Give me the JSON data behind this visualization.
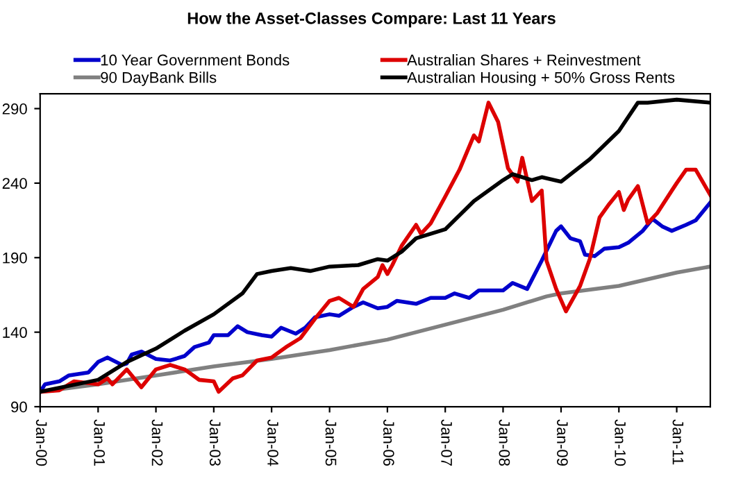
{
  "chart_data": {
    "type": "line",
    "title": "How the Asset-Classes Compare: Last 11 Years",
    "xlim": [
      "2000-01",
      "2011-08"
    ],
    "xticks": [
      {
        "value": "2000-01",
        "label": "Jan-00"
      },
      {
        "value": "2001-01",
        "label": "Jan-01"
      },
      {
        "value": "2002-01",
        "label": "Jan-02"
      },
      {
        "value": "2003-01",
        "label": "Jan-03"
      },
      {
        "value": "2004-01",
        "label": "Jan-04"
      },
      {
        "value": "2005-01",
        "label": "Jan-05"
      },
      {
        "value": "2006-01",
        "label": "Jan-06"
      },
      {
        "value": "2007-01",
        "label": "Jan-07"
      },
      {
        "value": "2008-01",
        "label": "Jan-08"
      },
      {
        "value": "2009-01",
        "label": "Jan-09"
      },
      {
        "value": "2010-01",
        "label": "Jan-10"
      },
      {
        "value": "2011-01",
        "label": "Jan-11"
      }
    ],
    "ylim": [
      90,
      300
    ],
    "yticks": [
      90,
      140,
      190,
      240,
      290
    ],
    "grid": false,
    "legend": "top",
    "marker": "none",
    "line_style": "solid",
    "series": [
      {
        "name": "10 Year Government Bonds",
        "color": "#0000cc",
        "x": [
          "2000-01",
          "2000-02",
          "2000-05",
          "2000-07",
          "2000-11",
          "2001-01",
          "2001-03",
          "2001-06",
          "2001-07",
          "2001-08",
          "2001-10",
          "2002-01",
          "2002-04",
          "2002-07",
          "2002-09",
          "2002-12",
          "2003-01",
          "2003-04",
          "2003-06",
          "2003-08",
          "2003-11",
          "2004-01",
          "2004-03",
          "2004-06",
          "2004-08",
          "2004-10",
          "2005-01",
          "2005-03",
          "2005-06",
          "2005-08",
          "2005-11",
          "2006-01",
          "2006-03",
          "2006-07",
          "2006-10",
          "2007-01",
          "2007-03",
          "2007-06",
          "2007-08",
          "2008-01",
          "2008-03",
          "2008-06",
          "2008-09",
          "2008-12",
          "2009-01",
          "2009-03",
          "2009-05",
          "2009-06",
          "2009-08",
          "2009-10",
          "2010-01",
          "2010-03",
          "2010-06",
          "2010-08",
          "2010-10",
          "2010-12",
          "2011-03",
          "2011-05",
          "2011-08"
        ],
        "values": [
          100,
          105,
          107,
          111,
          113,
          120,
          123,
          118,
          119,
          125,
          127,
          122,
          121,
          124,
          130,
          133,
          138,
          138,
          144,
          140,
          138,
          137,
          143,
          139,
          143,
          150,
          152,
          151,
          157,
          160,
          156,
          157,
          161,
          159,
          163,
          163,
          166,
          163,
          168,
          168,
          173,
          169,
          188,
          208,
          211,
          203,
          201,
          192,
          191,
          196,
          197,
          200,
          208,
          216,
          211,
          208,
          212,
          215,
          227
        ]
      },
      {
        "name": "90 DayBank Bills",
        "color": "#808080",
        "x": [
          "2000-01",
          "2001-01",
          "2002-01",
          "2003-01",
          "2004-01",
          "2005-01",
          "2006-01",
          "2007-01",
          "2008-01",
          "2008-10",
          "2009-01",
          "2010-01",
          "2011-01",
          "2011-08"
        ],
        "values": [
          100,
          105,
          111,
          117,
          122,
          128,
          135,
          145,
          155,
          164,
          166,
          171,
          180,
          184
        ]
      },
      {
        "name": "Australian Shares + Reinvestment",
        "color": "#dd0000",
        "x": [
          "2000-01",
          "2000-05",
          "2000-08",
          "2001-01",
          "2001-03",
          "2001-04",
          "2001-07",
          "2001-10",
          "2002-01",
          "2002-04",
          "2002-07",
          "2002-10",
          "2003-01",
          "2003-02",
          "2003-05",
          "2003-07",
          "2003-10",
          "2004-01",
          "2004-04",
          "2004-07",
          "2004-10",
          "2005-01",
          "2005-03",
          "2005-06",
          "2005-08",
          "2005-11",
          "2005-12",
          "2006-01",
          "2006-02",
          "2006-04",
          "2006-07",
          "2006-08",
          "2006-10",
          "2007-01",
          "2007-04",
          "2007-07",
          "2007-08",
          "2007-10",
          "2007-12",
          "2008-02",
          "2008-04",
          "2008-05",
          "2008-07",
          "2008-09",
          "2008-10",
          "2008-12",
          "2009-02",
          "2009-05",
          "2009-07",
          "2009-09",
          "2009-11",
          "2010-01",
          "2010-02",
          "2010-03",
          "2010-05",
          "2010-07",
          "2010-09",
          "2010-12",
          "2011-01",
          "2011-03",
          "2011-05",
          "2011-08"
        ],
        "values": [
          100,
          101,
          107,
          105,
          109,
          105,
          115,
          103,
          115,
          118,
          115,
          108,
          107,
          100,
          109,
          111,
          121,
          123,
          130,
          136,
          149,
          161,
          163,
          157,
          169,
          177,
          185,
          179,
          185,
          198,
          212,
          206,
          213,
          231,
          249,
          272,
          268,
          294,
          281,
          250,
          241,
          257,
          228,
          235,
          188,
          169,
          154,
          171,
          189,
          217,
          226,
          234,
          222,
          229,
          238,
          213,
          220,
          235,
          240,
          249,
          249,
          232
        ]
      },
      {
        "name": "Australian Housing + 50% Gross Rents",
        "color": "#000000",
        "x": [
          "2000-01",
          "2001-01",
          "2001-07",
          "2002-01",
          "2002-07",
          "2003-01",
          "2003-07",
          "2003-10",
          "2004-01",
          "2004-05",
          "2004-09",
          "2005-01",
          "2005-07",
          "2005-11",
          "2006-01",
          "2006-04",
          "2006-07",
          "2007-01",
          "2007-07",
          "2008-01",
          "2008-03",
          "2008-07",
          "2008-09",
          "2009-01",
          "2009-07",
          "2010-01",
          "2010-05",
          "2010-07",
          "2011-01",
          "2011-08"
        ],
        "values": [
          100,
          108,
          120,
          129,
          141,
          152,
          166,
          179,
          181,
          183,
          181,
          184,
          185,
          189,
          188,
          194,
          203,
          209,
          228,
          242,
          246,
          242,
          244,
          241,
          256,
          275,
          294,
          294,
          296,
          294
        ]
      }
    ]
  }
}
